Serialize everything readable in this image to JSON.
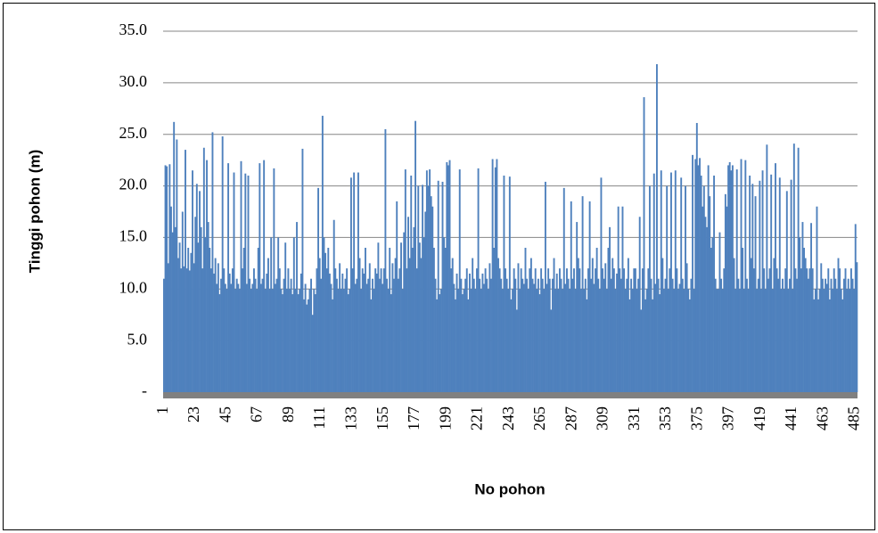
{
  "chart_data": {
    "type": "bar",
    "ylabel": "Tinggi pohon (m)",
    "xlabel": "No pohon",
    "color": "#4f81bd",
    "grid": true,
    "ylim": [
      0,
      35
    ],
    "yticks": [
      {
        "value": 0,
        "label": "-"
      },
      {
        "value": 5,
        "label": "5.0"
      },
      {
        "value": 10,
        "label": "10.0"
      },
      {
        "value": 15,
        "label": "15.0"
      },
      {
        "value": 20,
        "label": "20.0"
      },
      {
        "value": 25,
        "label": "25.0"
      },
      {
        "value": 30,
        "label": "30.0"
      },
      {
        "value": 35,
        "label": "35.0"
      }
    ],
    "xlim": [
      0.5,
      486.5
    ],
    "xticks": [
      1,
      23,
      45,
      67,
      89,
      111,
      133,
      155,
      177,
      199,
      221,
      243,
      265,
      287,
      309,
      331,
      353,
      375,
      397,
      419,
      441,
      463,
      485
    ],
    "x": [
      1,
      2,
      3,
      4,
      5,
      6,
      7,
      8,
      9,
      10,
      11,
      12,
      13,
      14,
      15,
      16,
      17,
      18,
      19,
      20,
      21,
      22,
      23,
      24,
      25,
      26,
      27,
      28,
      29,
      30,
      31,
      32,
      33,
      34,
      35,
      36,
      37,
      38,
      39,
      40,
      41,
      42,
      43,
      44,
      45,
      46,
      47,
      48,
      49,
      50,
      51,
      52,
      53,
      54,
      55,
      56,
      57,
      58,
      59,
      60,
      61,
      62,
      63,
      64,
      65,
      66,
      67,
      68,
      69,
      70,
      71,
      72,
      73,
      74,
      75,
      76,
      77,
      78,
      79,
      80,
      81,
      82,
      83,
      84,
      85,
      86,
      87,
      88,
      89,
      90,
      91,
      92,
      93,
      94,
      95,
      96,
      97,
      98,
      99,
      100,
      101,
      102,
      103,
      104,
      105,
      106,
      107,
      108,
      109,
      110,
      111,
      112,
      113,
      114,
      115,
      116,
      117,
      118,
      119,
      120,
      121,
      122,
      123,
      124,
      125,
      126,
      127,
      128,
      129,
      130,
      131,
      132,
      133,
      134,
      135,
      136,
      137,
      138,
      139,
      140,
      141,
      142,
      143,
      144,
      145,
      146,
      147,
      148,
      149,
      150,
      151,
      152,
      153,
      154,
      155,
      156,
      157,
      158,
      159,
      160,
      161,
      162,
      163,
      164,
      165,
      166,
      167,
      168,
      169,
      170,
      171,
      172,
      173,
      174,
      175,
      176,
      177,
      178,
      179,
      180,
      181,
      182,
      183,
      184,
      185,
      186,
      187,
      188,
      189,
      190,
      191,
      192,
      193,
      194,
      195,
      196,
      197,
      198,
      199,
      200,
      201,
      202,
      203,
      204,
      205,
      206,
      207,
      208,
      209,
      210,
      211,
      212,
      213,
      214,
      215,
      216,
      217,
      218,
      219,
      220,
      221,
      222,
      223,
      224,
      225,
      226,
      227,
      228,
      229,
      230,
      231,
      232,
      233,
      234,
      235,
      236,
      237,
      238,
      239,
      240,
      241,
      242,
      243,
      244,
      245,
      246,
      247,
      248,
      249,
      250,
      251,
      252,
      253,
      254,
      255,
      256,
      257,
      258,
      259,
      260,
      261,
      262,
      263,
      264,
      265,
      266,
      267,
      268,
      269,
      270,
      271,
      272,
      273,
      274,
      275,
      276,
      277,
      278,
      279,
      280,
      281,
      282,
      283,
      284,
      285,
      286,
      287,
      288,
      289,
      290,
      291,
      292,
      293,
      294,
      295,
      296,
      297,
      298,
      299,
      300,
      301,
      302,
      303,
      304,
      305,
      306,
      307,
      308,
      309,
      310,
      311,
      312,
      313,
      314,
      315,
      316,
      317,
      318,
      319,
      320,
      321,
      322,
      323,
      324,
      325,
      326,
      327,
      328,
      329,
      330,
      331,
      332,
      333,
      334,
      335,
      336,
      337,
      338,
      339,
      340,
      341,
      342,
      343,
      344,
      345,
      346,
      347,
      348,
      349,
      350,
      351,
      352,
      353,
      354,
      355,
      356,
      357,
      358,
      359,
      360,
      361,
      362,
      363,
      364,
      365,
      366,
      367,
      368,
      369,
      370,
      371,
      372,
      373,
      374,
      375,
      376,
      377,
      378,
      379,
      380,
      381,
      382,
      383,
      384,
      385,
      386,
      387,
      388,
      389,
      390,
      391,
      392,
      393,
      394,
      395,
      396,
      397,
      398,
      399,
      400,
      401,
      402,
      403,
      404,
      405,
      406,
      407,
      408,
      409,
      410,
      411,
      412,
      413,
      414,
      415,
      416,
      417,
      418,
      419,
      420,
      421,
      422,
      423,
      424,
      425,
      426,
      427,
      428,
      429,
      430,
      431,
      432,
      433,
      434,
      435,
      436,
      437,
      438,
      439,
      440,
      441,
      442,
      443,
      444,
      445,
      446,
      447,
      448,
      449,
      450,
      451,
      452,
      453,
      454,
      455,
      456,
      457,
      458,
      459,
      460,
      461,
      462,
      463,
      464,
      465,
      466,
      467,
      468,
      469,
      470,
      471,
      472,
      473,
      474,
      475,
      476,
      477,
      478,
      479,
      480,
      481,
      482,
      483,
      484,
      485,
      486
    ],
    "values": [
      11,
      22,
      21.9,
      12.5,
      22.1,
      18,
      15.5,
      26.2,
      16,
      24.5,
      13,
      14.5,
      12,
      17.5,
      12.2,
      23.5,
      12,
      14,
      11.8,
      13.5,
      21.5,
      12.5,
      17,
      20.2,
      14.5,
      19.5,
      16,
      12,
      23.7,
      15,
      22.5,
      16.5,
      14,
      12,
      25.2,
      11.5,
      13,
      10.5,
      12.5,
      9.5,
      11,
      24.8,
      12,
      10.5,
      10,
      22.2,
      11.5,
      10.5,
      12,
      21.3,
      10,
      11,
      10.5,
      10,
      22.4,
      12,
      14,
      21.2,
      10.5,
      21,
      11,
      10,
      10.5,
      12,
      11,
      10,
      14,
      22.2,
      10.5,
      11,
      22.5,
      10,
      11.5,
      13,
      10,
      15,
      10,
      21.7,
      10.5,
      11,
      15,
      12,
      10,
      9.5,
      11,
      14.5,
      10,
      12,
      10,
      11,
      9.5,
      15,
      10,
      16.5,
      9.5,
      10,
      11.5,
      23.6,
      9,
      10.5,
      8.5,
      9,
      10,
      11,
      7.5,
      10,
      9.5,
      12,
      19.8,
      13,
      11,
      26.8,
      15,
      13.5,
      12,
      14,
      11.5,
      10.5,
      9,
      16.7,
      12,
      11,
      10,
      12.5,
      10,
      11.5,
      10,
      11,
      12,
      9.5,
      10,
      20.8,
      12,
      21.3,
      10.5,
      11,
      21.3,
      13,
      10,
      12,
      11.5,
      14,
      10.5,
      11,
      12.5,
      9,
      11,
      10,
      12,
      11.5,
      14.5,
      11,
      12,
      10.5,
      12,
      25.5,
      11,
      10,
      14,
      9.5,
      12.5,
      11,
      13,
      18.5,
      11,
      12,
      14.5,
      10,
      15.5,
      21.6,
      12,
      17,
      13,
      21,
      14,
      16,
      26.3,
      12,
      20,
      14.5,
      13,
      20.1,
      15,
      17.5,
      21.5,
      20,
      21.6,
      19,
      18,
      14,
      11,
      9,
      20.5,
      9.5,
      10,
      20.4,
      15,
      14,
      22.3,
      22,
      22.5,
      12,
      13,
      10.5,
      9,
      11.5,
      10,
      21.6,
      11,
      9.5,
      10,
      11,
      12,
      9,
      11.5,
      10,
      13,
      11,
      10,
      12,
      21.7,
      11,
      10,
      11.5,
      10.5,
      12,
      11,
      10,
      12.5,
      11,
      22.6,
      14,
      21.8,
      22.6,
      13,
      12,
      11,
      10,
      21,
      12,
      11,
      10,
      20.9,
      9,
      10,
      12,
      11,
      8,
      12.5,
      10,
      12,
      11,
      10.5,
      14,
      11,
      10,
      12,
      13,
      11,
      10.5,
      12,
      10,
      11,
      9.5,
      12,
      11,
      10,
      20.4,
      10.5,
      12,
      11,
      8,
      11,
      13,
      10,
      11.5,
      10,
      12,
      11,
      10,
      19.8,
      10.5,
      12,
      11,
      10,
      18.5,
      11,
      12,
      10,
      16.5,
      13,
      12,
      10,
      19,
      10,
      11,
      9,
      12,
      18.5,
      11,
      13,
      10.5,
      12,
      14,
      11,
      10,
      20.8,
      12,
      11,
      12.5,
      10,
      14,
      16,
      11,
      13,
      12,
      10,
      11.5,
      18,
      12,
      11,
      18,
      12,
      10,
      11,
      13,
      9,
      11,
      10,
      12,
      12,
      10,
      11,
      17,
      8,
      12,
      28.6,
      9,
      10,
      12,
      20,
      11,
      9,
      21.2,
      10.5,
      31.8,
      11,
      9.5,
      21.5,
      13,
      10,
      11,
      20,
      10,
      12,
      21.3,
      11,
      10,
      21.5,
      12,
      10,
      10.5,
      20.8,
      11,
      10,
      20,
      12.5,
      10,
      9,
      11,
      23,
      10,
      22.6,
      26.1,
      22,
      22.7,
      21,
      18,
      20,
      17,
      16,
      22,
      19,
      14,
      15,
      21,
      11,
      10,
      10,
      15.5,
      11,
      10,
      12,
      19.2,
      18,
      22,
      22.3,
      21.5,
      22,
      13,
      10,
      21.6,
      11,
      10,
      22.6,
      14,
      10,
      22.5,
      11,
      10,
      21,
      13,
      20.2,
      12,
      19,
      10,
      11,
      20.5,
      10,
      21.5,
      12,
      10,
      24,
      11,
      12,
      21.1,
      10,
      13,
      22.2,
      12,
      11,
      20.8,
      10,
      11,
      10,
      12,
      19.5,
      10,
      11,
      20.6,
      10,
      24.1,
      12,
      11,
      23.7,
      15,
      12,
      16.5,
      14,
      13,
      12,
      11,
      12,
      16.4,
      12,
      9,
      10,
      18,
      9,
      10,
      12.5,
      11,
      10,
      11,
      10.5,
      12,
      9,
      11,
      10,
      12,
      11,
      10,
      13,
      12,
      10,
      9,
      11,
      12,
      10,
      11,
      10,
      12,
      11,
      10,
      16.3,
      12.6
    ]
  }
}
